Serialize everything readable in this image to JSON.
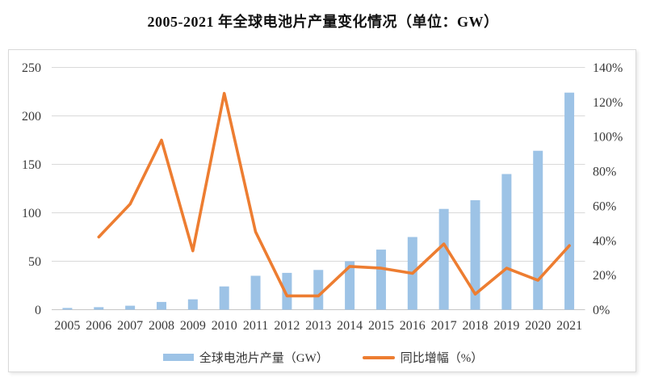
{
  "title": "2005-2021 年全球电池片产量变化情况（单位：GW）",
  "chart_data": {
    "type": "bar+line combo",
    "title": "2005-2021 年全球电池片产量变化情况（单位：GW）",
    "categories": [
      "2005",
      "2006",
      "2007",
      "2008",
      "2009",
      "2010",
      "2011",
      "2012",
      "2013",
      "2014",
      "2015",
      "2016",
      "2017",
      "2018",
      "2019",
      "2020",
      "2021"
    ],
    "series": [
      {
        "name": "全球电池片产量（GW）",
        "type": "bar",
        "axis": "left",
        "color": "#9DC3E6",
        "values": [
          1.8,
          2.6,
          4.1,
          8,
          10.7,
          24,
          35,
          38,
          41,
          50,
          62,
          75,
          104,
          113,
          140,
          164,
          224
        ]
      },
      {
        "name": "同比增幅（%）",
        "type": "line",
        "axis": "right",
        "color": "#ED7D31",
        "values": [
          null,
          42,
          61,
          98,
          34,
          125,
          45,
          8,
          8,
          25,
          24,
          21,
          38,
          9,
          24,
          17,
          37
        ]
      }
    ],
    "left_axis": {
      "min": 0,
      "max": 250,
      "step": 50,
      "ticks": [
        "0",
        "50",
        "100",
        "150",
        "200",
        "250"
      ]
    },
    "right_axis": {
      "min": 0,
      "max": 140,
      "step": 20,
      "ticks": [
        "0%",
        "20%",
        "40%",
        "60%",
        "80%",
        "100%",
        "120%",
        "140%"
      ]
    },
    "grid": true,
    "legend_position": "bottom"
  },
  "colors": {
    "bar": "#9DC3E6",
    "line": "#ED7D31",
    "gridline": "#d9d9d9",
    "baseline": "#c6c6c6",
    "axis_text": "#3a3a3a",
    "frame_border": "#d9d9d9",
    "title_text": "#111111"
  }
}
